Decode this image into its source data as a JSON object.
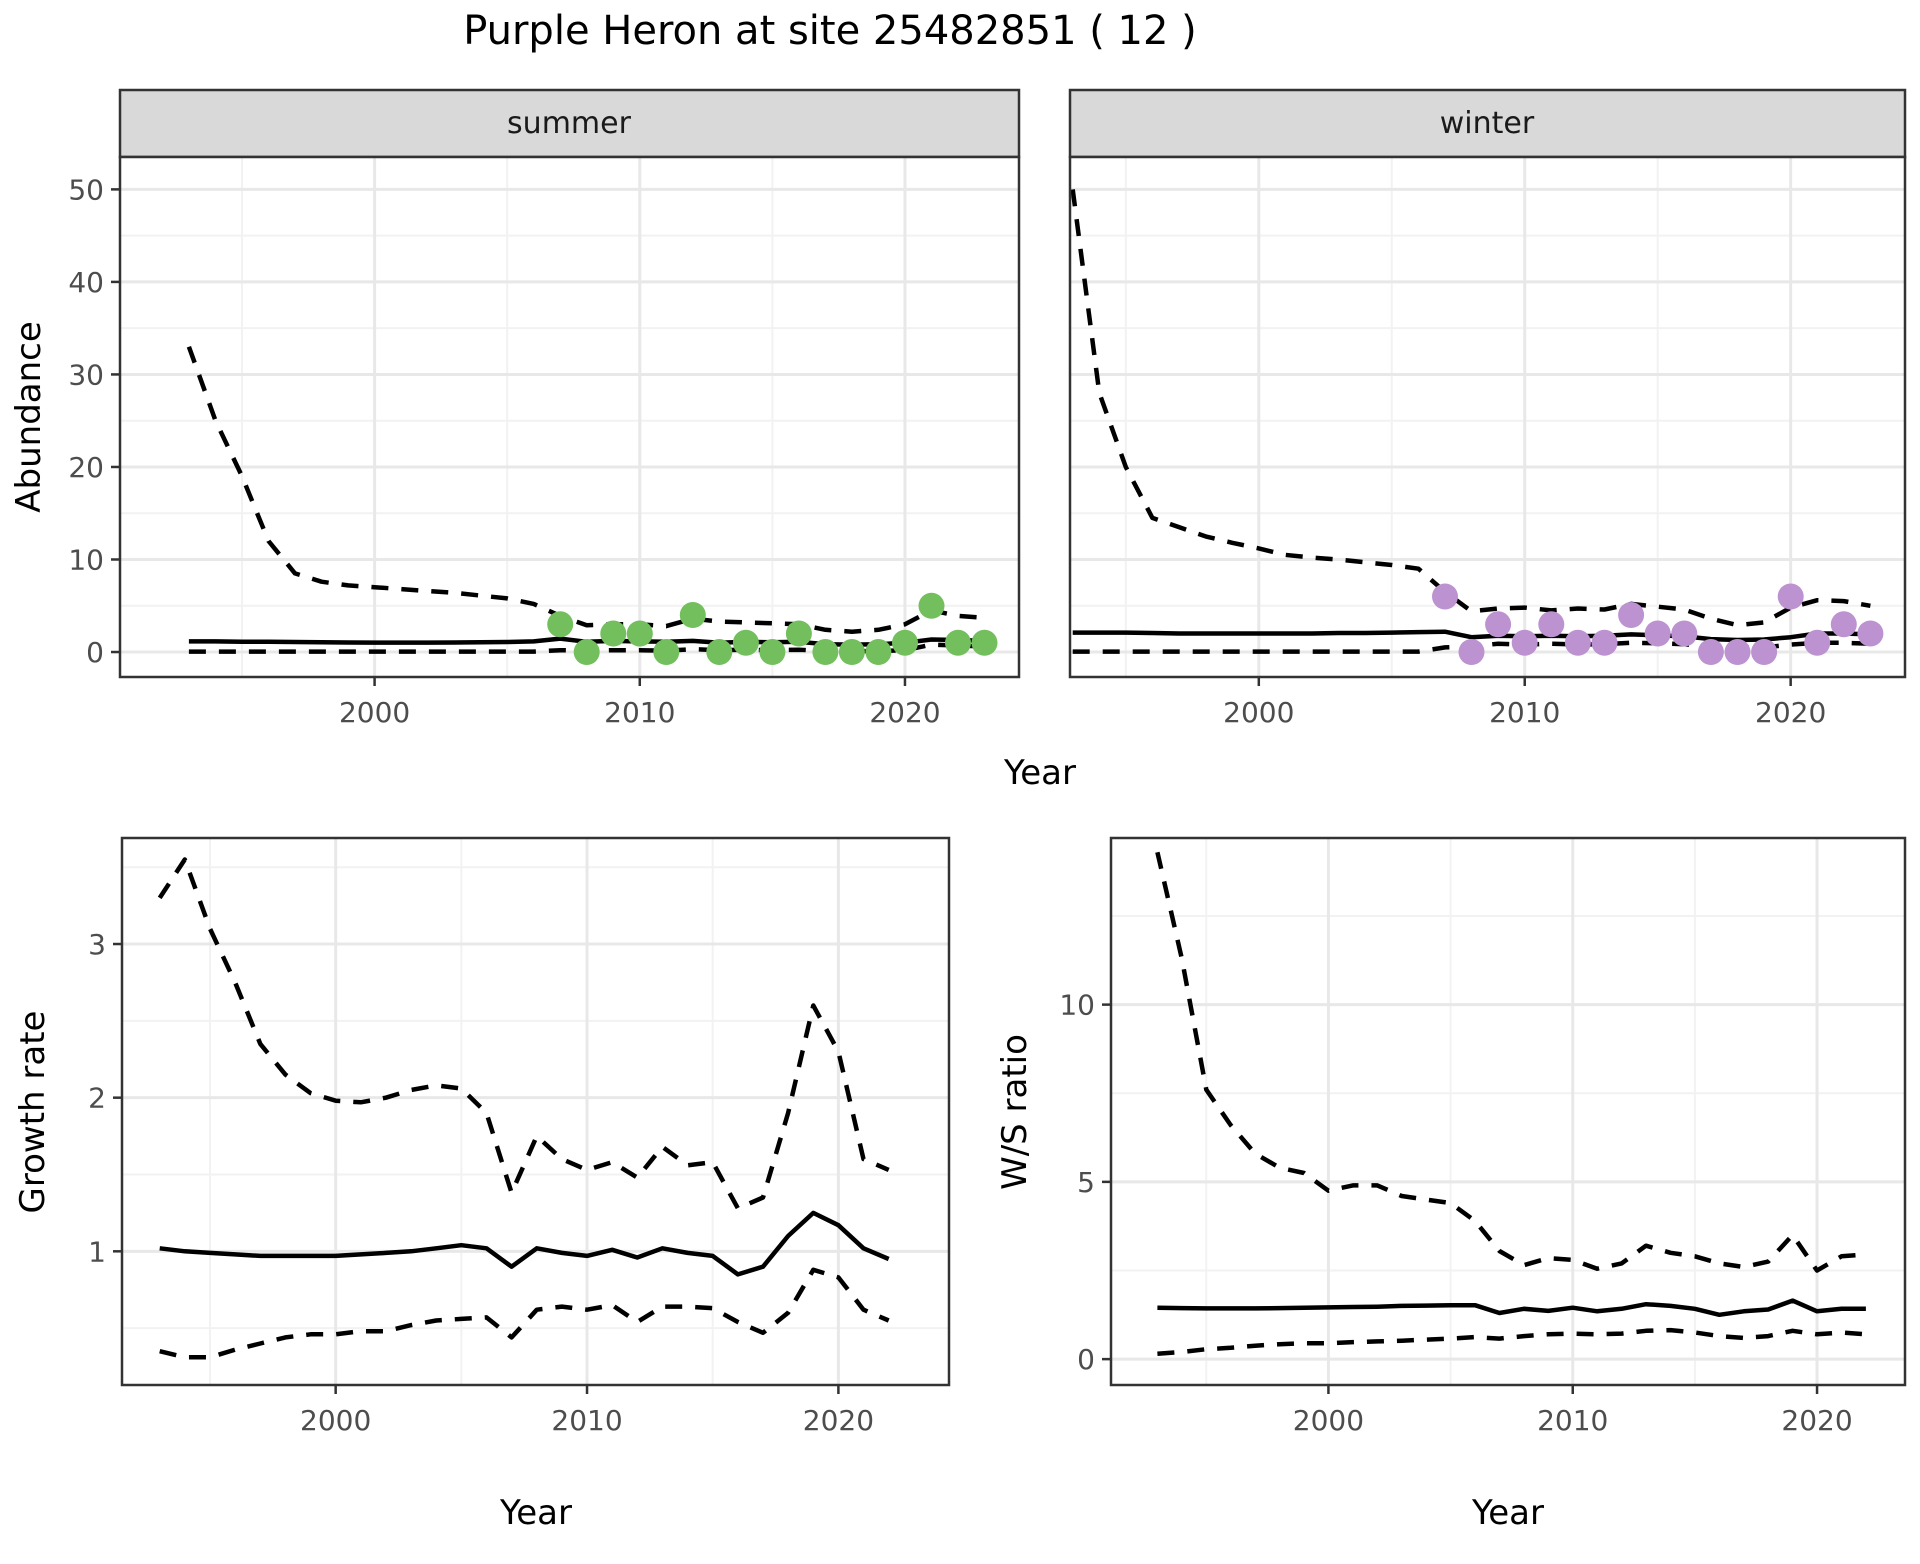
{
  "title": "Purple Heron at site 25482851 ( 12 )",
  "facets": [
    {
      "label": "summer"
    },
    {
      "label": "winter"
    }
  ],
  "axis_titles": {
    "abundance": "Abundance",
    "year": "Year",
    "growth": "Growth rate",
    "ws": "W/S ratio"
  },
  "colors": {
    "summer_point": "#73BF5E",
    "winter_point": "#BC92D0",
    "line": "#000000",
    "axis_text": "#4d4d4d",
    "strip_bg": "#d9d9d9",
    "panel_border": "#333333",
    "grid_major": "#e8e8e8",
    "grid_minor": "#f2f2f2"
  },
  "chart_data": [
    {
      "id": "abundance_summer",
      "type": "line",
      "facet": "summer",
      "ylabel": "Abundance",
      "xlabel": "Year",
      "xlim": [
        1990.4,
        2024.3
      ],
      "ylim": [
        -2.7,
        53.5
      ],
      "xticks": [
        2000,
        2010,
        2020
      ],
      "xticks_minor": [
        1995,
        2005,
        2015
      ],
      "yticks": [
        0,
        10,
        20,
        30,
        40,
        50
      ],
      "yticks_minor": [
        5,
        15,
        25,
        35,
        45
      ],
      "x": [
        1993,
        1994,
        1995,
        1996,
        1997,
        1998,
        1999,
        2000,
        2001,
        2002,
        2003,
        2004,
        2005,
        2006,
        2007,
        2008,
        2009,
        2010,
        2011,
        2012,
        2013,
        2014,
        2015,
        2016,
        2017,
        2018,
        2019,
        2020,
        2021,
        2022,
        2023
      ],
      "series": [
        {
          "name": "fitted",
          "style": "solid",
          "values": [
            1.15,
            1.15,
            1.12,
            1.1,
            1.08,
            1.05,
            1.03,
            1.02,
            1.02,
            1.02,
            1.03,
            1.05,
            1.08,
            1.15,
            1.45,
            1.1,
            1.2,
            1.15,
            1.1,
            1.2,
            1.0,
            1.1,
            1.05,
            1.1,
            0.85,
            0.8,
            0.85,
            1.0,
            1.35,
            1.3,
            1.2
          ]
        },
        {
          "name": "upper_ci",
          "style": "dashed",
          "values": [
            33,
            25,
            19,
            12,
            8.5,
            7.6,
            7.2,
            7.0,
            6.8,
            6.6,
            6.4,
            6.1,
            5.8,
            5.2,
            3.9,
            2.9,
            3.0,
            3.0,
            2.8,
            3.6,
            3.3,
            3.2,
            3.1,
            3.0,
            2.4,
            2.2,
            2.4,
            3.0,
            4.5,
            3.9,
            3.7
          ]
        },
        {
          "name": "lower_ci",
          "style": "dashed",
          "values": [
            0.05,
            0.05,
            0.05,
            0.05,
            0.05,
            0.05,
            0.05,
            0.05,
            0.05,
            0.05,
            0.05,
            0.05,
            0.05,
            0.05,
            0.2,
            0.15,
            0.2,
            0.2,
            0.15,
            0.3,
            0.2,
            0.25,
            0.2,
            0.25,
            0.1,
            0.1,
            0.1,
            0.2,
            0.8,
            0.7,
            0.6
          ]
        }
      ],
      "points": {
        "color": "#73BF5E",
        "x": [
          2007,
          2008,
          2009,
          2010,
          2011,
          2012,
          2013,
          2014,
          2015,
          2016,
          2017,
          2018,
          2019,
          2020,
          2021,
          2022,
          2023
        ],
        "y": [
          3,
          0,
          2,
          2,
          0,
          4,
          0,
          1,
          0,
          2,
          0,
          0,
          0,
          1,
          5,
          1,
          1
        ]
      }
    },
    {
      "id": "abundance_winter",
      "type": "line",
      "facet": "winter",
      "ylabel": "Abundance",
      "xlabel": "Year",
      "xlim": [
        1992.9,
        2024.3
      ],
      "ylim": [
        -2.7,
        53.5
      ],
      "xticks": [
        2000,
        2010,
        2020
      ],
      "xticks_minor": [
        1995,
        2005,
        2015
      ],
      "yticks": [
        0,
        10,
        20,
        30,
        40,
        50
      ],
      "yticks_minor": [
        5,
        15,
        25,
        35,
        45
      ],
      "x": [
        1993,
        1994,
        1995,
        1996,
        1997,
        1998,
        1999,
        2000,
        2001,
        2002,
        2003,
        2004,
        2005,
        2006,
        2007,
        2008,
        2009,
        2010,
        2011,
        2012,
        2013,
        2014,
        2015,
        2016,
        2017,
        2018,
        2019,
        2020,
        2021,
        2022,
        2023
      ],
      "series": [
        {
          "name": "fitted",
          "style": "solid",
          "values": [
            2.1,
            2.1,
            2.1,
            2.05,
            2.0,
            2.0,
            2.0,
            2.0,
            2.0,
            2.0,
            2.05,
            2.05,
            2.1,
            2.15,
            2.2,
            1.6,
            1.75,
            1.7,
            1.75,
            1.7,
            1.75,
            1.9,
            1.8,
            1.7,
            1.4,
            1.3,
            1.35,
            1.6,
            2.0,
            2.0,
            1.9
          ]
        },
        {
          "name": "upper_ci",
          "style": "dashed",
          "values": [
            50,
            28,
            20,
            14.5,
            13.5,
            12.5,
            11.8,
            11.2,
            10.5,
            10.2,
            10.0,
            9.7,
            9.4,
            9.0,
            6.5,
            4.4,
            4.7,
            4.8,
            4.5,
            4.7,
            4.6,
            5.2,
            4.9,
            4.6,
            3.6,
            2.9,
            3.2,
            4.8,
            5.6,
            5.5,
            5.0
          ]
        },
        {
          "name": "lower_ci",
          "style": "dashed",
          "values": [
            0.05,
            0.05,
            0.05,
            0.05,
            0.05,
            0.05,
            0.05,
            0.05,
            0.05,
            0.05,
            0.05,
            0.05,
            0.05,
            0.05,
            0.5,
            0.6,
            0.9,
            0.8,
            0.9,
            0.8,
            0.85,
            1.0,
            0.95,
            0.85,
            0.5,
            0.45,
            0.5,
            0.8,
            1.0,
            1.0,
            0.9
          ]
        }
      ],
      "points": {
        "color": "#BC92D0",
        "x": [
          2007,
          2008,
          2009,
          2010,
          2011,
          2012,
          2013,
          2014,
          2015,
          2016,
          2017,
          2018,
          2019,
          2020,
          2021,
          2022,
          2023
        ],
        "y": [
          6,
          0,
          3,
          1,
          3,
          1,
          1,
          4,
          2,
          2,
          0,
          0,
          0,
          6,
          1,
          3,
          2
        ]
      }
    },
    {
      "id": "growth_rate",
      "type": "line",
      "ylabel": "Growth rate",
      "xlabel": "Year",
      "xlim": [
        1991.5,
        2024.4
      ],
      "ylim": [
        0.13,
        3.69
      ],
      "xticks": [
        2000,
        2010,
        2020
      ],
      "xticks_minor": [
        1995,
        2005,
        2015
      ],
      "yticks": [
        1,
        2,
        3
      ],
      "yticks_minor": [
        0.5,
        1.5,
        2.5,
        3.5
      ],
      "x": [
        1993,
        1994,
        1995,
        1996,
        1997,
        1998,
        1999,
        2000,
        2001,
        2002,
        2003,
        2004,
        2005,
        2006,
        2007,
        2008,
        2009,
        2010,
        2011,
        2012,
        2013,
        2014,
        2015,
        2016,
        2017,
        2018,
        2019,
        2020,
        2021,
        2022
      ],
      "series": [
        {
          "name": "fitted",
          "style": "solid",
          "values": [
            1.02,
            1.0,
            0.99,
            0.98,
            0.97,
            0.97,
            0.97,
            0.97,
            0.98,
            0.99,
            1.0,
            1.02,
            1.04,
            1.02,
            0.9,
            1.02,
            0.99,
            0.97,
            1.01,
            0.96,
            1.02,
            0.99,
            0.97,
            0.85,
            0.9,
            1.1,
            1.25,
            1.17,
            1.02,
            0.95
          ]
        },
        {
          "name": "upper_ci",
          "style": "dashed",
          "values": [
            3.3,
            3.55,
            3.1,
            2.75,
            2.35,
            2.15,
            2.03,
            1.98,
            1.97,
            2.0,
            2.05,
            2.08,
            2.06,
            1.9,
            1.38,
            1.75,
            1.6,
            1.53,
            1.58,
            1.48,
            1.68,
            1.56,
            1.58,
            1.28,
            1.35,
            1.9,
            2.6,
            2.3,
            1.6,
            1.53
          ]
        },
        {
          "name": "lower_ci",
          "style": "dashed",
          "values": [
            0.35,
            0.31,
            0.31,
            0.36,
            0.4,
            0.44,
            0.46,
            0.46,
            0.48,
            0.48,
            0.52,
            0.55,
            0.56,
            0.57,
            0.44,
            0.62,
            0.64,
            0.62,
            0.65,
            0.54,
            0.64,
            0.64,
            0.63,
            0.54,
            0.47,
            0.6,
            0.88,
            0.83,
            0.62,
            0.55
          ]
        }
      ]
    },
    {
      "id": "ws_ratio",
      "type": "line",
      "ylabel": "W/S ratio",
      "xlabel": "Year",
      "xlim": [
        1991.1,
        2023.6
      ],
      "ylim": [
        -0.73,
        14.7
      ],
      "xticks": [
        2000,
        2010,
        2020
      ],
      "xticks_minor": [
        1995,
        2005,
        2015
      ],
      "yticks": [
        0,
        5,
        10
      ],
      "yticks_minor": [
        2.5,
        7.5,
        12.5
      ],
      "x": [
        1993,
        1994,
        1995,
        1996,
        1997,
        1998,
        1999,
        2000,
        2001,
        2002,
        2003,
        2004,
        2005,
        2006,
        2007,
        2008,
        2009,
        2010,
        2011,
        2012,
        2013,
        2014,
        2015,
        2016,
        2017,
        2018,
        2019,
        2020,
        2021,
        2022
      ],
      "series": [
        {
          "name": "fitted",
          "style": "solid",
          "values": [
            1.45,
            1.44,
            1.43,
            1.43,
            1.43,
            1.44,
            1.45,
            1.46,
            1.47,
            1.48,
            1.5,
            1.51,
            1.52,
            1.52,
            1.3,
            1.42,
            1.36,
            1.45,
            1.35,
            1.42,
            1.55,
            1.5,
            1.42,
            1.25,
            1.35,
            1.4,
            1.65,
            1.35,
            1.42,
            1.42
          ]
        },
        {
          "name": "upper_ci",
          "style": "dashed",
          "values": [
            14.3,
            11.3,
            7.6,
            6.6,
            5.8,
            5.4,
            5.25,
            4.75,
            4.9,
            4.9,
            4.6,
            4.5,
            4.4,
            3.9,
            3.05,
            2.65,
            2.85,
            2.8,
            2.55,
            2.7,
            3.2,
            3.0,
            2.9,
            2.7,
            2.6,
            2.75,
            3.5,
            2.5,
            2.9,
            2.95
          ]
        },
        {
          "name": "lower_ci",
          "style": "dashed",
          "values": [
            0.15,
            0.2,
            0.28,
            0.32,
            0.38,
            0.42,
            0.45,
            0.45,
            0.48,
            0.5,
            0.52,
            0.55,
            0.58,
            0.62,
            0.58,
            0.65,
            0.7,
            0.72,
            0.7,
            0.72,
            0.8,
            0.82,
            0.75,
            0.65,
            0.6,
            0.65,
            0.8,
            0.7,
            0.75,
            0.7
          ]
        }
      ]
    }
  ]
}
